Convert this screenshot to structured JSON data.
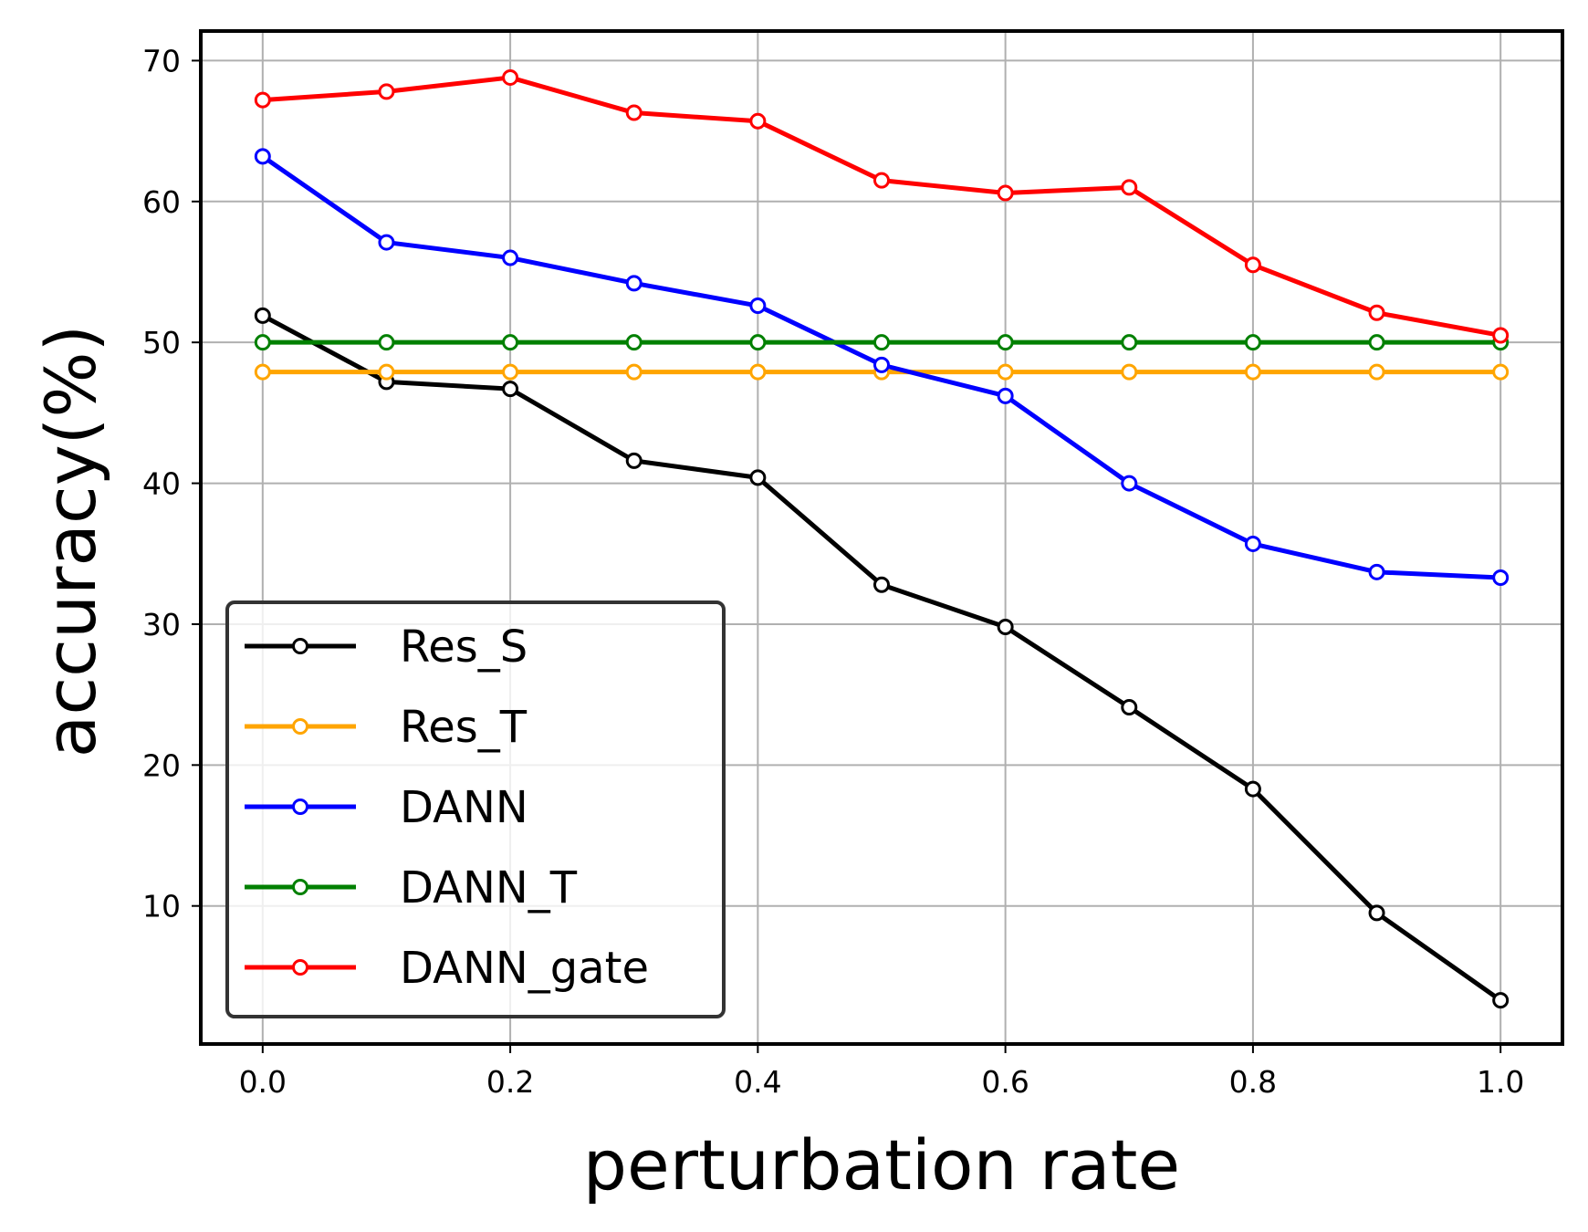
{
  "chart_data": {
    "type": "line",
    "title": "",
    "xlabel": "perturbation rate",
    "ylabel": "accuracy(%)",
    "xlim": [
      -0.05,
      1.05
    ],
    "ylim": [
      0.2,
      72.1
    ],
    "xticks": [
      0.0,
      0.2,
      0.4,
      0.6,
      0.8,
      1.0
    ],
    "xtick_labels": [
      "0.0",
      "0.2",
      "0.4",
      "0.6",
      "0.8",
      "1.0"
    ],
    "yticks": [
      10,
      20,
      30,
      40,
      50,
      60,
      70
    ],
    "ytick_labels": [
      "10",
      "20",
      "30",
      "40",
      "50",
      "60",
      "70"
    ],
    "grid": true,
    "legend_position": "lower-left",
    "x": [
      0.0,
      0.1,
      0.2,
      0.3,
      0.4,
      0.5,
      0.6,
      0.7,
      0.8,
      0.9,
      1.0
    ],
    "series": [
      {
        "name": "Res_S",
        "color": "#000000",
        "values": [
          51.9,
          47.2,
          46.7,
          41.6,
          40.4,
          32.8,
          29.8,
          24.1,
          18.3,
          9.5,
          3.3
        ]
      },
      {
        "name": "Res_T",
        "color": "#FFA500",
        "values": [
          47.9,
          47.9,
          47.9,
          47.9,
          47.9,
          47.9,
          47.9,
          47.9,
          47.9,
          47.9,
          47.9
        ]
      },
      {
        "name": "DANN",
        "color": "#0000FF",
        "values": [
          63.2,
          57.1,
          56.0,
          54.2,
          52.6,
          48.4,
          46.2,
          40.0,
          35.7,
          33.7,
          33.3
        ]
      },
      {
        "name": "DANN_T",
        "color": "#008000",
        "values": [
          50.0,
          50.0,
          50.0,
          50.0,
          50.0,
          50.0,
          50.0,
          50.0,
          50.0,
          50.0,
          50.0
        ]
      },
      {
        "name": "DANN_gate",
        "color": "#FF0000",
        "values": [
          67.2,
          67.8,
          68.8,
          66.3,
          65.7,
          61.5,
          60.6,
          61.0,
          55.5,
          52.1,
          50.5
        ]
      }
    ]
  }
}
